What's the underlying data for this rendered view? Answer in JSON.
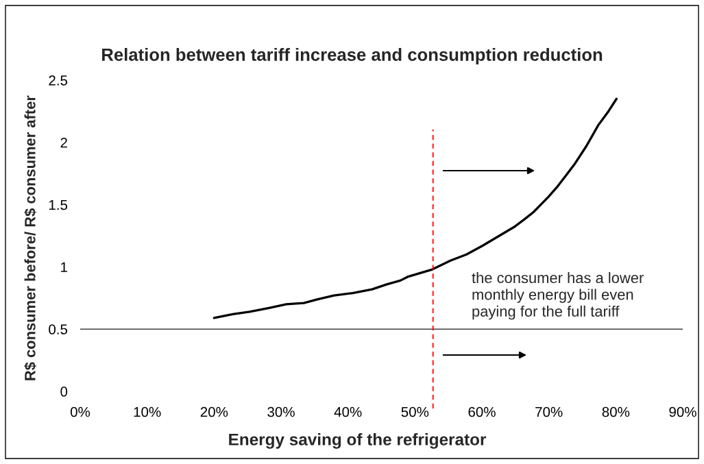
{
  "chart_data": {
    "type": "line",
    "title": "Relation between tariff increase and consumption reduction",
    "xlabel": "Energy saving of the refrigerator",
    "ylabel": "R$ consumer before/ R$ consumer after",
    "annotations": [
      "the consumer has a lower\nmonthly energy bill even\npaying for the full tariff"
    ],
    "series": [
      {
        "color": "#000000",
        "x": [
          20.0,
          22.8,
          25.3,
          28.2,
          30.8,
          33.4,
          35.5,
          37.9,
          40.7,
          43.6,
          45.8,
          47.8,
          48.9,
          52.6,
          55.3,
          57.7,
          60.1,
          62.6,
          64.8,
          66.3,
          67.7,
          69.9,
          71.2,
          72.5,
          73.9,
          75.6,
          77.4,
          78.9,
          80.1
        ],
        "values": [
          0.59,
          0.62,
          0.64,
          0.67,
          0.7,
          0.71,
          0.74,
          0.77,
          0.79,
          0.82,
          0.86,
          0.89,
          0.92,
          0.98,
          1.05,
          1.1,
          1.17,
          1.25,
          1.32,
          1.38,
          1.44,
          1.56,
          1.64,
          1.73,
          1.83,
          1.97,
          2.14,
          2.25,
          2.35
        ]
      }
    ],
    "xlim": [
      0,
      90
    ],
    "xticks": [
      {
        "value": 0,
        "label": "0%"
      },
      {
        "value": 10,
        "label": "10%"
      },
      {
        "value": 20,
        "label": "20%"
      },
      {
        "value": 30,
        "label": "30%"
      },
      {
        "value": 40,
        "label": "40%"
      },
      {
        "value": 50,
        "label": "50%"
      },
      {
        "value": 60,
        "label": "60%"
      },
      {
        "value": 70,
        "label": "70%"
      },
      {
        "value": 80,
        "label": "80%"
      },
      {
        "value": 90,
        "label": "90%"
      }
    ],
    "ylim": [
      0,
      2.5
    ],
    "yticks": [
      0,
      0.5,
      1,
      1.5,
      2,
      2.5
    ],
    "ref_lines": [
      {
        "axis": "y",
        "value": 0.5,
        "color": "#404040",
        "line_style": "solid"
      },
      {
        "axis": "x",
        "value": 52.7,
        "color": "#ff0000",
        "line_style": "dashed"
      }
    ],
    "grid": false,
    "marker": "none",
    "line_style": "solid"
  }
}
